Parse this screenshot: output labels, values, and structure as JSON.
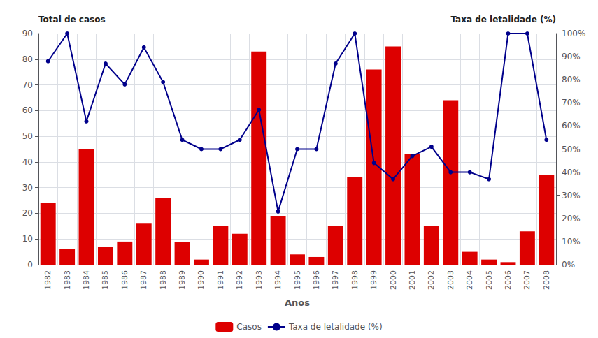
{
  "chart_data": {
    "type": "bar",
    "xlabel": "Anos",
    "ylabel": "Total de casos",
    "y2label": "Taxa de letalidade (%)",
    "categories": [
      "1982",
      "1983",
      "1984",
      "1985",
      "1986",
      "1987",
      "1988",
      "1989",
      "1990",
      "1991",
      "1992",
      "1993",
      "1994",
      "1995",
      "1996",
      "1997",
      "1998",
      "1999",
      "2000",
      "2001",
      "2002",
      "2003",
      "2004",
      "2005",
      "2006",
      "2007",
      "2008"
    ],
    "series": [
      {
        "name": "Casos",
        "type": "bar",
        "color": "#dd0000",
        "values": [
          24,
          6,
          45,
          7,
          9,
          16,
          26,
          9,
          2,
          15,
          12,
          83,
          19,
          4,
          3,
          15,
          34,
          76,
          85,
          43,
          15,
          64,
          5,
          2,
          1,
          13,
          35
        ]
      },
      {
        "name": "Taxa de letalidade (%)",
        "type": "line",
        "axis": "y2",
        "color": "#00008b",
        "marker": "circle",
        "values": [
          88,
          100,
          62,
          87,
          78,
          94,
          79,
          54,
          50,
          50,
          54,
          67,
          23,
          50,
          50,
          87,
          100,
          44,
          37,
          47,
          51,
          40,
          40,
          37,
          100,
          100,
          54
        ]
      }
    ],
    "ylim": [
      0,
      90
    ],
    "yticks": [
      0,
      10,
      20,
      30,
      40,
      50,
      60,
      70,
      80,
      90
    ],
    "y2lim": [
      0,
      100
    ],
    "y2ticks": [
      {
        "value": 0,
        "label": "0%"
      },
      {
        "value": 10,
        "label": "10%"
      },
      {
        "value": 20,
        "label": "20%"
      },
      {
        "value": 30,
        "label": "30%"
      },
      {
        "value": 40,
        "label": "40%"
      },
      {
        "value": 50,
        "label": "50%"
      },
      {
        "value": 60,
        "label": "60%"
      },
      {
        "value": 70,
        "label": "70%"
      },
      {
        "value": 80,
        "label": "80%"
      },
      {
        "value": 90,
        "label": "90%"
      },
      {
        "value": 100,
        "label": "100%"
      }
    ],
    "grid": true,
    "legend": "bottom"
  }
}
